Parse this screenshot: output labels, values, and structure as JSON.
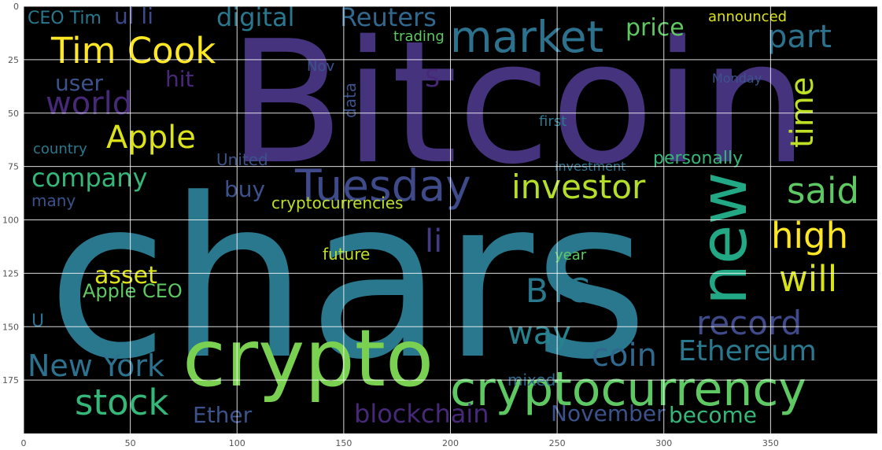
{
  "chart_data": {
    "type": "wordcloud",
    "words": [
      "Bitcoin",
      "chars",
      "crypto",
      "cryptocurrency",
      "new",
      "Tuesday",
      "market",
      "Tim Cook",
      "world",
      "Apple",
      "company",
      "investor",
      "said",
      "high",
      "will",
      "time",
      "record",
      "coin",
      "Ethereum",
      "BTC",
      "way",
      "stock",
      "New York",
      "blockchain",
      "November",
      "become",
      "Ether",
      "mixed",
      "part",
      "price",
      "digital",
      "Reuters",
      "CEO Tim",
      "ul li",
      "user",
      "hit",
      "S",
      "announced",
      "trading",
      "Nov",
      "Monday",
      "data",
      "first",
      "country",
      "United",
      "personally",
      "investment",
      "buy",
      "many",
      "cryptocurrencies",
      "li",
      "future",
      "year",
      "asset",
      "Apple CEO",
      "U"
    ],
    "colors": [
      "#46337e",
      "#2a788e",
      "#7ad151",
      "#5ec962",
      "#22a884",
      "#3e4a89",
      "#2c728e",
      "#fde725",
      "#482878",
      "#dce319",
      "#35b779",
      "#b5de2b",
      "#5ec962",
      "#fde725",
      "#d8e219",
      "#bddf26",
      "#3e4a89",
      "#31688e",
      "#2a788e",
      "#2a788e",
      "#26828e",
      "#35b779",
      "#2c728e",
      "#482878",
      "#3b528b",
      "#35b779",
      "#3b528b",
      "#31688e",
      "#2c728e",
      "#5ec962",
      "#2a788e",
      "#31688e",
      "#2a788e",
      "#3e4a89",
      "#3b528b",
      "#482878",
      "#482878",
      "#dce319",
      "#5ec962",
      "#3b528b",
      "#3b528b",
      "#3b528b",
      "#2a788e",
      "#2a788e",
      "#3b528b",
      "#35b779",
      "#2c728e",
      "#3b528b",
      "#3b528b",
      "#bddf26",
      "#443a83",
      "#bddf26",
      "#5ec962",
      "#dce319",
      "#5ec962",
      "#2c728e"
    ],
    "background": "#000000",
    "xlim": [
      0,
      400
    ],
    "ylim": [
      200,
      0
    ],
    "xticks": [
      0,
      50,
      100,
      150,
      200,
      250,
      300,
      350
    ],
    "yticks": [
      0,
      25,
      50,
      75,
      100,
      125,
      150,
      175
    ],
    "grid": true
  }
}
